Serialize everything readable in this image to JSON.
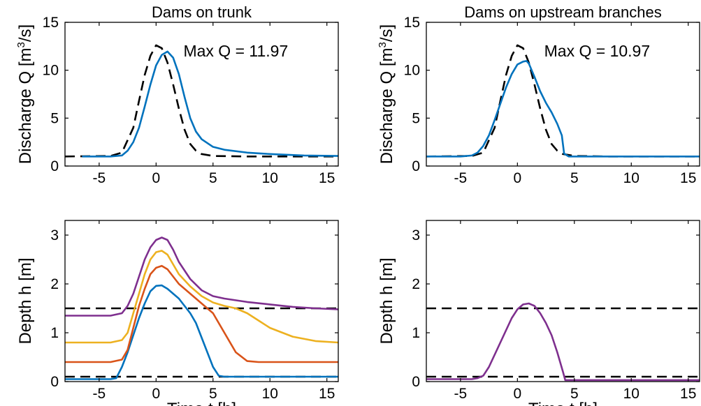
{
  "chart_data": [
    {
      "type": "line",
      "title": "Dams on trunk",
      "xlabel": "",
      "ylabel": "Discharge Q [m",
      "ylabel_sup": "3",
      "ylabel_tail": "/s]",
      "xlim": [
        -8,
        16
      ],
      "ylim": [
        0,
        15
      ],
      "xticks": [
        -5,
        0,
        5,
        10,
        15
      ],
      "yticks": [
        0,
        5,
        10,
        15
      ],
      "grid": false,
      "annotations": [
        {
          "text": "Max Q = 11.97",
          "x": 7,
          "y": 12
        }
      ],
      "series": [
        {
          "color": "#000000",
          "dash": true,
          "x": [
            -8,
            -4,
            -3,
            -2,
            -1.5,
            -1,
            -0.5,
            0,
            0.5,
            1,
            1.5,
            2,
            2.5,
            3,
            3.5,
            4,
            5,
            8,
            16
          ],
          "y": [
            1,
            1.05,
            1.4,
            4,
            6.8,
            9.5,
            11.5,
            12.6,
            12.3,
            10.8,
            8.5,
            6,
            3.8,
            2.3,
            1.6,
            1.25,
            1.05,
            1,
            1
          ]
        },
        {
          "color": "#0072BD",
          "dash": false,
          "x": [
            -6.5,
            -4,
            -3,
            -2.5,
            -2,
            -1.5,
            -1,
            -0.5,
            0,
            0.5,
            1,
            1.5,
            2,
            2.5,
            3,
            3.5,
            4,
            5,
            6,
            8,
            10,
            13,
            16
          ],
          "y": [
            1,
            1,
            1.1,
            1.6,
            2.5,
            4,
            6.2,
            8.5,
            10.5,
            11.6,
            11.95,
            11.3,
            9.6,
            7.2,
            5,
            3.6,
            2.8,
            2,
            1.7,
            1.4,
            1.25,
            1.1,
            1.05
          ]
        }
      ]
    },
    {
      "type": "line",
      "title": "Dams on upstream branches",
      "xlabel": "",
      "ylabel": "Discharge Q [m",
      "ylabel_sup": "3",
      "ylabel_tail": "/s]",
      "xlim": [
        -8,
        16
      ],
      "ylim": [
        0,
        15
      ],
      "xticks": [
        -5,
        0,
        5,
        10,
        15
      ],
      "yticks": [
        0,
        5,
        10,
        15
      ],
      "grid": false,
      "annotations": [
        {
          "text": "Max Q = 10.97",
          "x": 7,
          "y": 12
        }
      ],
      "series": [
        {
          "color": "#000000",
          "dash": true,
          "x": [
            -8,
            -4,
            -3,
            -2,
            -1.5,
            -1,
            -0.5,
            0,
            0.5,
            1,
            1.5,
            2,
            2.5,
            3,
            3.5,
            4,
            5,
            8,
            16
          ],
          "y": [
            1,
            1.05,
            1.4,
            4,
            6.8,
            9.5,
            11.5,
            12.6,
            12.3,
            10.8,
            8.5,
            6,
            3.8,
            2.3,
            1.6,
            1.25,
            1.05,
            1,
            1
          ]
        },
        {
          "color": "#0072BD",
          "dash": false,
          "x": [
            -8,
            -5,
            -4,
            -3.5,
            -3,
            -2.5,
            -2,
            -1.5,
            -1,
            -0.5,
            0,
            0.5,
            0.8,
            1,
            1.5,
            2,
            2.5,
            3,
            3.5,
            3.9,
            4.1,
            4.5,
            16
          ],
          "y": [
            1,
            1,
            1.1,
            1.4,
            2.1,
            3.2,
            4.8,
            6.5,
            8.2,
            9.6,
            10.6,
            10.9,
            10.97,
            10.7,
            9.3,
            7.8,
            6.6,
            5.6,
            4.4,
            3.2,
            1.3,
            1,
            1
          ]
        }
      ]
    },
    {
      "type": "line",
      "title": "",
      "xlabel": "Time t [h]",
      "ylabel": "Depth h [m]",
      "xlim": [
        -8,
        16
      ],
      "ylim": [
        0,
        3.3
      ],
      "xticks": [
        -5,
        0,
        5,
        10,
        15
      ],
      "yticks": [
        0,
        1,
        2,
        3
      ],
      "grid": false,
      "series": [
        {
          "color": "#000000",
          "dash": true,
          "x": [
            -8,
            16
          ],
          "y": [
            1.5,
            1.5
          ]
        },
        {
          "color": "#000000",
          "dash": true,
          "x": [
            -8,
            16
          ],
          "y": [
            0.1,
            0.1
          ]
        },
        {
          "color": "#0072BD",
          "dash": false,
          "x": [
            -8,
            -4,
            -3.5,
            -3,
            -2.5,
            -2,
            -1.5,
            -1,
            -0.5,
            0,
            0.5,
            1,
            1.5,
            2,
            2.5,
            3,
            3.5,
            4,
            4.5,
            5,
            5.5,
            6,
            16
          ],
          "y": [
            0.05,
            0.05,
            0.07,
            0.3,
            0.6,
            0.95,
            1.3,
            1.6,
            1.85,
            1.96,
            1.97,
            1.9,
            1.8,
            1.7,
            1.55,
            1.4,
            1.2,
            0.9,
            0.6,
            0.3,
            0.12,
            0.1,
            0.1
          ]
        },
        {
          "color": "#D95319",
          "dash": false,
          "x": [
            -8,
            -4,
            -3,
            -2.5,
            -2,
            -1.5,
            -1,
            -0.5,
            0,
            0.5,
            1,
            1.5,
            2,
            3,
            4,
            5,
            6,
            7,
            8,
            9,
            16
          ],
          "y": [
            0.4,
            0.4,
            0.45,
            0.65,
            1.1,
            1.55,
            1.9,
            2.2,
            2.33,
            2.37,
            2.3,
            2.15,
            2.0,
            1.8,
            1.6,
            1.4,
            1.0,
            0.6,
            0.42,
            0.4,
            0.4
          ]
        },
        {
          "color": "#EDB120",
          "dash": false,
          "x": [
            -8,
            -4,
            -3,
            -2.5,
            -2,
            -1.5,
            -1,
            -0.5,
            0,
            0.5,
            1,
            1.5,
            2,
            3,
            4,
            5,
            6,
            7,
            8,
            9,
            10,
            12,
            14,
            16
          ],
          "y": [
            0.8,
            0.8,
            0.85,
            1.0,
            1.4,
            1.8,
            2.2,
            2.5,
            2.65,
            2.68,
            2.6,
            2.4,
            2.2,
            1.95,
            1.75,
            1.62,
            1.55,
            1.5,
            1.4,
            1.25,
            1.1,
            0.92,
            0.83,
            0.8
          ]
        },
        {
          "color": "#7E2F8E",
          "dash": false,
          "x": [
            -8,
            -4,
            -3,
            -2.5,
            -2,
            -1.5,
            -1,
            -0.5,
            0,
            0.5,
            1,
            1.5,
            2,
            3,
            4,
            5,
            6,
            8,
            10,
            12,
            14,
            16
          ],
          "y": [
            1.35,
            1.35,
            1.4,
            1.55,
            1.8,
            2.15,
            2.5,
            2.75,
            2.9,
            2.95,
            2.9,
            2.7,
            2.45,
            2.1,
            1.87,
            1.75,
            1.7,
            1.63,
            1.58,
            1.53,
            1.5,
            1.48
          ]
        }
      ]
    },
    {
      "type": "line",
      "title": "",
      "xlabel": "Time t [h]",
      "ylabel": "Depth h [m]",
      "xlim": [
        -8,
        16
      ],
      "ylim": [
        0,
        3.3
      ],
      "xticks": [
        -5,
        0,
        5,
        10,
        15
      ],
      "yticks": [
        0,
        1,
        2,
        3
      ],
      "grid": false,
      "series": [
        {
          "color": "#000000",
          "dash": true,
          "x": [
            -8,
            16
          ],
          "y": [
            1.5,
            1.5
          ]
        },
        {
          "color": "#000000",
          "dash": true,
          "x": [
            -8,
            16
          ],
          "y": [
            0.1,
            0.1
          ]
        },
        {
          "color": "#7E2F8E",
          "dash": false,
          "x": [
            -8,
            -4,
            -3.5,
            -3,
            -2.5,
            -2,
            -1.5,
            -1,
            -0.5,
            0,
            0.5,
            1,
            1.5,
            2,
            2.5,
            3,
            3.5,
            4,
            4.2,
            16
          ],
          "y": [
            0.05,
            0.05,
            0.07,
            0.12,
            0.3,
            0.55,
            0.8,
            1.05,
            1.3,
            1.48,
            1.58,
            1.6,
            1.55,
            1.4,
            1.2,
            0.95,
            0.6,
            0.2,
            0.03,
            0.03
          ]
        }
      ]
    }
  ]
}
